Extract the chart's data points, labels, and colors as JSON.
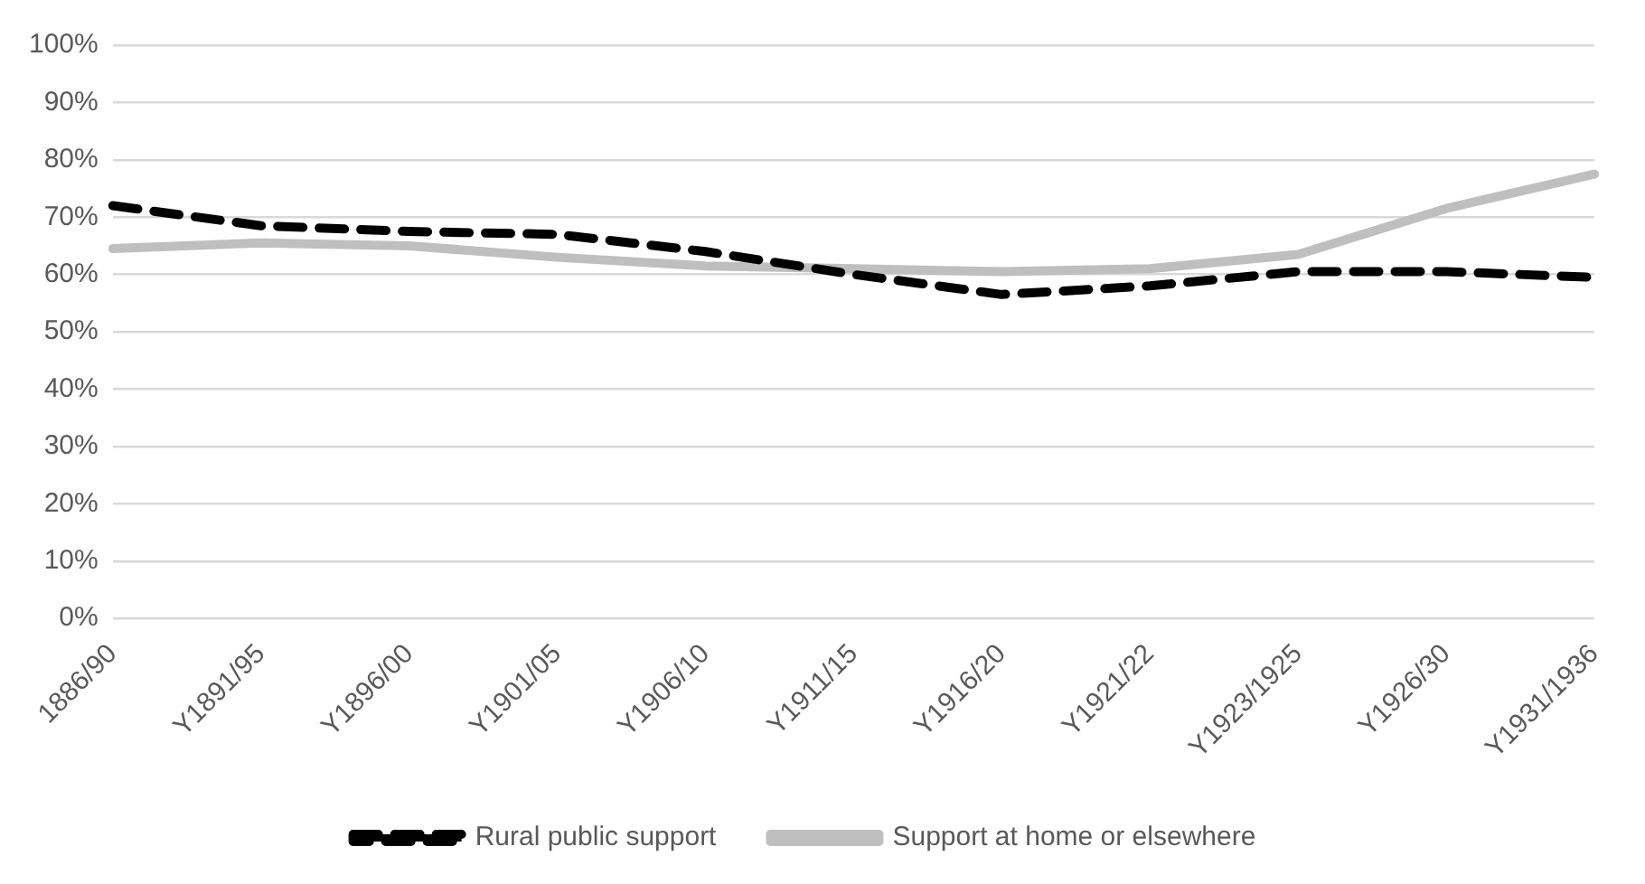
{
  "chart_data": {
    "type": "line",
    "categories": [
      "1886/90",
      "Y1891/95",
      "Y1896/00",
      "Y1901/05",
      "Y1906/10",
      "Y1911/15",
      "Y1916/20",
      "Y1921/22",
      "Y1923/1925",
      "Y1926/30",
      "Y1931/1936"
    ],
    "series": [
      {
        "name": "Rural public support",
        "color": "#000000",
        "line_style": "dashed",
        "values": [
          72,
          68.5,
          67.5,
          67,
          64,
          60,
          56.5,
          58,
          60.5,
          60.5,
          59.5
        ]
      },
      {
        "name": "Support at home or elsewhere",
        "color": "#bfbfbf",
        "line_style": "solid",
        "values": [
          64.5,
          65.5,
          65,
          63,
          61.5,
          61,
          60.5,
          61,
          63.5,
          71.5,
          77.5
        ]
      }
    ],
    "ylim": [
      0,
      100
    ],
    "yticks": [
      {
        "value": 0,
        "label": "0%"
      },
      {
        "value": 10,
        "label": "10%"
      },
      {
        "value": 20,
        "label": "20%"
      },
      {
        "value": 30,
        "label": "30%"
      },
      {
        "value": 40,
        "label": "40%"
      },
      {
        "value": 50,
        "label": "50%"
      },
      {
        "value": 60,
        "label": "60%"
      },
      {
        "value": 70,
        "label": "70%"
      },
      {
        "value": 80,
        "label": "80%"
      },
      {
        "value": 90,
        "label": "90%"
      },
      {
        "value": 100,
        "label": "100%"
      }
    ],
    "grid": "y",
    "legend": "bottom",
    "marker": "none"
  }
}
